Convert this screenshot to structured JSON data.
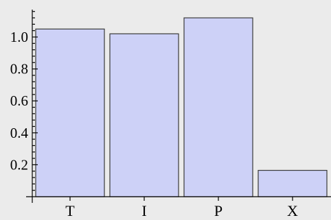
{
  "chart_data": {
    "type": "bar",
    "categories": [
      "T",
      "I",
      "P",
      "X"
    ],
    "values": [
      1.05,
      1.02,
      1.12,
      0.165
    ],
    "ylim": [
      0,
      1.18
    ],
    "yticks": [
      0.2,
      0.4,
      0.6,
      0.8,
      1.0
    ],
    "ytick_labels": [
      "0.2",
      "0.4",
      "0.6",
      "0.8",
      "1.0"
    ],
    "grid": false,
    "colors": {
      "bar_fill": "#cdd1f7",
      "bar_stroke": "#3a3a3a",
      "background": "#ebebeb"
    }
  }
}
